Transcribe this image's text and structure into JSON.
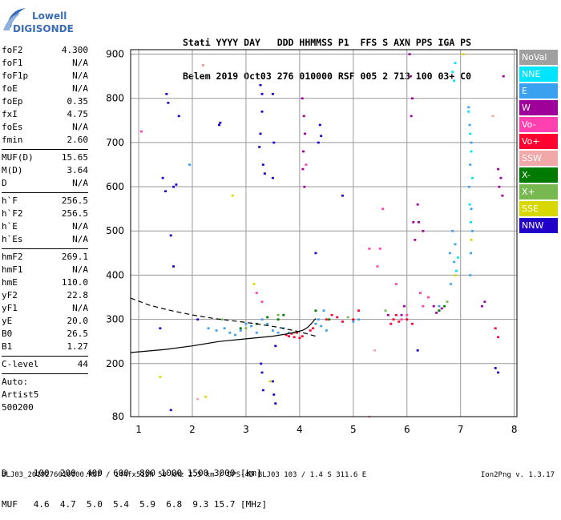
{
  "logo": {
    "line1": "Lowell",
    "line2": "DIGISONDE"
  },
  "header": {
    "line1": "Stati YYYY DAY   DDD HHMMSS P1  FFS S AXN PPS IGA PS",
    "line2": "Belem 2019 Oct03 276 010000 RSF 005 2 713 100 03+ C0"
  },
  "params": {
    "group1": [
      {
        "label": "foF2",
        "value": "4.300"
      },
      {
        "label": "foF1",
        "value": "N/A"
      },
      {
        "label": "foF1p",
        "value": "N/A"
      },
      {
        "label": "foE",
        "value": "N/A"
      },
      {
        "label": "foEp",
        "value": "0.35"
      },
      {
        "label": "fxI",
        "value": "4.75"
      },
      {
        "label": "foEs",
        "value": "N/A"
      },
      {
        "label": "fmin",
        "value": "2.60"
      }
    ],
    "group2": [
      {
        "label": "MUF(D)",
        "value": "15.65"
      },
      {
        "label": "M(D)",
        "value": "3.64"
      },
      {
        "label": "D",
        "value": "N/A"
      }
    ],
    "group3": [
      {
        "label": "h`F",
        "value": "256.5"
      },
      {
        "label": "h`F2",
        "value": "256.5"
      },
      {
        "label": "h`E",
        "value": "N/A"
      },
      {
        "label": "h`Es",
        "value": "N/A"
      }
    ],
    "group4": [
      {
        "label": "hmF2",
        "value": "269.1"
      },
      {
        "label": "hmF1",
        "value": "N/A"
      },
      {
        "label": "hmE",
        "value": "110.0"
      },
      {
        "label": "yF2",
        "value": "22.8"
      },
      {
        "label": "yF1",
        "value": "N/A"
      },
      {
        "label": "yE",
        "value": "20.0"
      },
      {
        "label": "B0",
        "value": "26.5"
      },
      {
        "label": "B1",
        "value": "1.27"
      }
    ],
    "clevel": {
      "label": "C-level",
      "value": "44"
    },
    "auto": [
      "Auto:",
      "Artist5",
      "500200"
    ]
  },
  "legend": [
    {
      "label": "NoVal",
      "color": "#a0a0a0"
    },
    {
      "label": "NNE",
      "color": "#00e5ff"
    },
    {
      "label": "E",
      "color": "#3aa0f0"
    },
    {
      "label": "W",
      "color": "#a0009a"
    },
    {
      "label": "Vo-",
      "color": "#ff40b0"
    },
    {
      "label": "Vo+",
      "color": "#ff0030"
    },
    {
      "label": "SSW",
      "color": "#f0a8a8"
    },
    {
      "label": "X-",
      "color": "#007a00"
    },
    {
      "label": "X+",
      "color": "#78b850"
    },
    {
      "label": "SSE",
      "color": "#d8d800"
    },
    {
      "label": "NNW",
      "color": "#2000c8"
    }
  ],
  "muf_table": {
    "line1": "D     100  200  400  600  800 1000 1500 3000 [km]",
    "line2": "MUF   4.6  4.7  5.0  5.4  5.9  6.8  9.3 15.7 [MHz]"
  },
  "footer": {
    "left": "BLJ03_2019276010000.RSF / 144fx512h 50 kHz 2.5 km / DPS-4D BLJ03 103 / 1.4 S 311.6 E",
    "right": "Ion2Png v. 1.3.17"
  },
  "chart_data": {
    "type": "scatter",
    "x_ticks": [
      "1",
      "2",
      "3",
      "4",
      "5",
      "6",
      "7",
      "8"
    ],
    "y_ticks": [
      "80",
      "200",
      "300",
      "400",
      "500",
      "600",
      "700",
      "800",
      "900"
    ],
    "xlim": [
      0.85,
      8.05
    ],
    "ylim": [
      80,
      910
    ],
    "grid": true,
    "series": [
      {
        "name": "NNW",
        "color": "#2000c8",
        "x": [
          1.45,
          1.5,
          1.55,
          1.52,
          1.6,
          1.65,
          1.7,
          1.75,
          1.65,
          2.1,
          2.5,
          2.52,
          3.25,
          3.27,
          3.3,
          3.3,
          3.32,
          3.35,
          3.27,
          3.5,
          3.5,
          3.52,
          3.55,
          3.28,
          3.3,
          3.32,
          3.5,
          3.52,
          3.55,
          4.35,
          4.38,
          4.4,
          4.8,
          1.4,
          1.6,
          6.2,
          7.65,
          7.7,
          4.3
        ],
        "y": [
          620,
          590,
          790,
          810,
          490,
          600,
          605,
          760,
          420,
          300,
          740,
          745,
          690,
          720,
          770,
          810,
          650,
          630,
          830,
          620,
          810,
          700,
          240,
          200,
          180,
          140,
          160,
          130,
          110,
          700,
          740,
          715,
          580,
          280,
          95,
          230,
          190,
          180,
          450
        ]
      },
      {
        "name": "E",
        "color": "#3aa0f0",
        "x": [
          2.6,
          2.7,
          2.8,
          2.9,
          3.0,
          3.1,
          3.2,
          3.3,
          3.4,
          3.5,
          3.6,
          3.7,
          4.3,
          4.35,
          4.4,
          4.45,
          4.5,
          5.0,
          5.1,
          6.8,
          6.85,
          6.9,
          6.88,
          6.82,
          7.15,
          7.17,
          7.2,
          7.18,
          7.16,
          7.2,
          7.22,
          7.19,
          7.18,
          2.3,
          2.45,
          3.8,
          6.6,
          1.95
        ],
        "y": [
          280,
          270,
          265,
          275,
          290,
          285,
          270,
          300,
          290,
          275,
          270,
          280,
          290,
          300,
          285,
          320,
          275,
          295,
          300,
          450,
          500,
          470,
          430,
          380,
          780,
          740,
          700,
          650,
          600,
          550,
          500,
          450,
          400,
          280,
          275,
          270,
          330,
          650
        ]
      },
      {
        "name": "NNE",
        "color": "#00e5ff",
        "x": [
          6.85,
          6.88,
          6.9,
          7.15,
          7.18,
          7.2,
          7.22,
          7.17,
          7.19,
          6.95,
          6.92
        ],
        "y": [
          860,
          840,
          880,
          770,
          720,
          680,
          620,
          560,
          520,
          440,
          410
        ]
      },
      {
        "name": "W",
        "color": "#a0009a",
        "x": [
          4.05,
          4.08,
          4.1,
          4.07,
          4.06,
          4.09,
          6.05,
          6.07,
          6.1,
          6.08,
          6.12,
          6.15,
          6.2,
          6.22,
          6.3,
          7.7,
          7.72,
          7.75,
          7.78,
          7.8,
          5.9,
          5.95,
          6.5,
          6.55,
          6.6,
          6.65,
          7.4,
          7.45,
          5.65
        ],
        "y": [
          800,
          760,
          720,
          680,
          640,
          600,
          900,
          850,
          800,
          760,
          520,
          480,
          560,
          520,
          500,
          640,
          600,
          620,
          580,
          850,
          310,
          330,
          330,
          315,
          320,
          325,
          330,
          340,
          310
        ]
      },
      {
        "name": "Vo-",
        "color": "#ff40b0",
        "x": [
          1.05,
          2.2,
          4.12,
          5.3,
          5.55,
          5.8,
          5.9,
          6.0,
          6.25,
          6.3,
          6.4,
          3.2,
          3.3,
          5.45,
          5.5
        ],
        "y": [
          725,
          875,
          650,
          460,
          550,
          380,
          300,
          310,
          360,
          330,
          350,
          360,
          340,
          420,
          460
        ]
      },
      {
        "name": "Vo+",
        "color": "#ff0030",
        "x": [
          3.75,
          3.8,
          3.85,
          3.9,
          3.95,
          4.0,
          4.05,
          4.2,
          4.25,
          4.5,
          4.6,
          4.7,
          4.8,
          5.0,
          5.1,
          5.7,
          5.75,
          5.8,
          5.85,
          6.0,
          6.1,
          7.65,
          7.7
        ],
        "y": [
          265,
          262,
          268,
          260,
          270,
          258,
          262,
          275,
          280,
          300,
          310,
          305,
          295,
          300,
          320,
          290,
          300,
          310,
          295,
          300,
          290,
          280,
          260
        ]
      },
      {
        "name": "SSW",
        "color": "#f0a8a8",
        "x": [
          2.2,
          5.3,
          5.4,
          2.1,
          7.6
        ],
        "y": [
          875,
          80,
          230,
          120,
          760
        ]
      },
      {
        "name": "X-",
        "color": "#007a00",
        "x": [
          3.2,
          3.4,
          3.7,
          4.3,
          4.55,
          6.6,
          6.7,
          2.9,
          3.6
        ],
        "y": [
          290,
          305,
          310,
          320,
          300,
          320,
          330,
          280,
          300
        ]
      },
      {
        "name": "X+",
        "color": "#78b850",
        "x": [
          2.55,
          3.0,
          3.6,
          4.9,
          5.6,
          6.75,
          3.9
        ],
        "y": [
          300,
          280,
          310,
          305,
          320,
          340,
          270
        ]
      },
      {
        "name": "SSE",
        "color": "#d8d800",
        "x": [
          1.4,
          2.25,
          2.75,
          3.15,
          3.45,
          6.9,
          7.05,
          7.2
        ],
        "y": [
          170,
          125,
          580,
          380,
          160,
          400,
          900,
          480
        ]
      }
    ],
    "curves": [
      {
        "name": "profile",
        "style": "solid",
        "x": [
          0.85,
          1.5,
          2.0,
          2.5,
          3.0,
          3.5,
          3.8,
          3.95,
          4.05,
          4.1,
          4.15,
          4.2,
          4.25,
          4.3
        ],
        "y": [
          225,
          232,
          240,
          250,
          256,
          262,
          268,
          272,
          275,
          278,
          282,
          288,
          295,
          302
        ]
      },
      {
        "name": "extrapolated",
        "style": "dashed",
        "x": [
          0.85,
          1.2,
          1.6,
          2.0,
          2.4,
          2.8,
          3.2,
          3.6,
          4.0,
          4.3
        ],
        "y": [
          348,
          332,
          320,
          310,
          302,
          296,
          290,
          282,
          272,
          262
        ]
      }
    ]
  }
}
